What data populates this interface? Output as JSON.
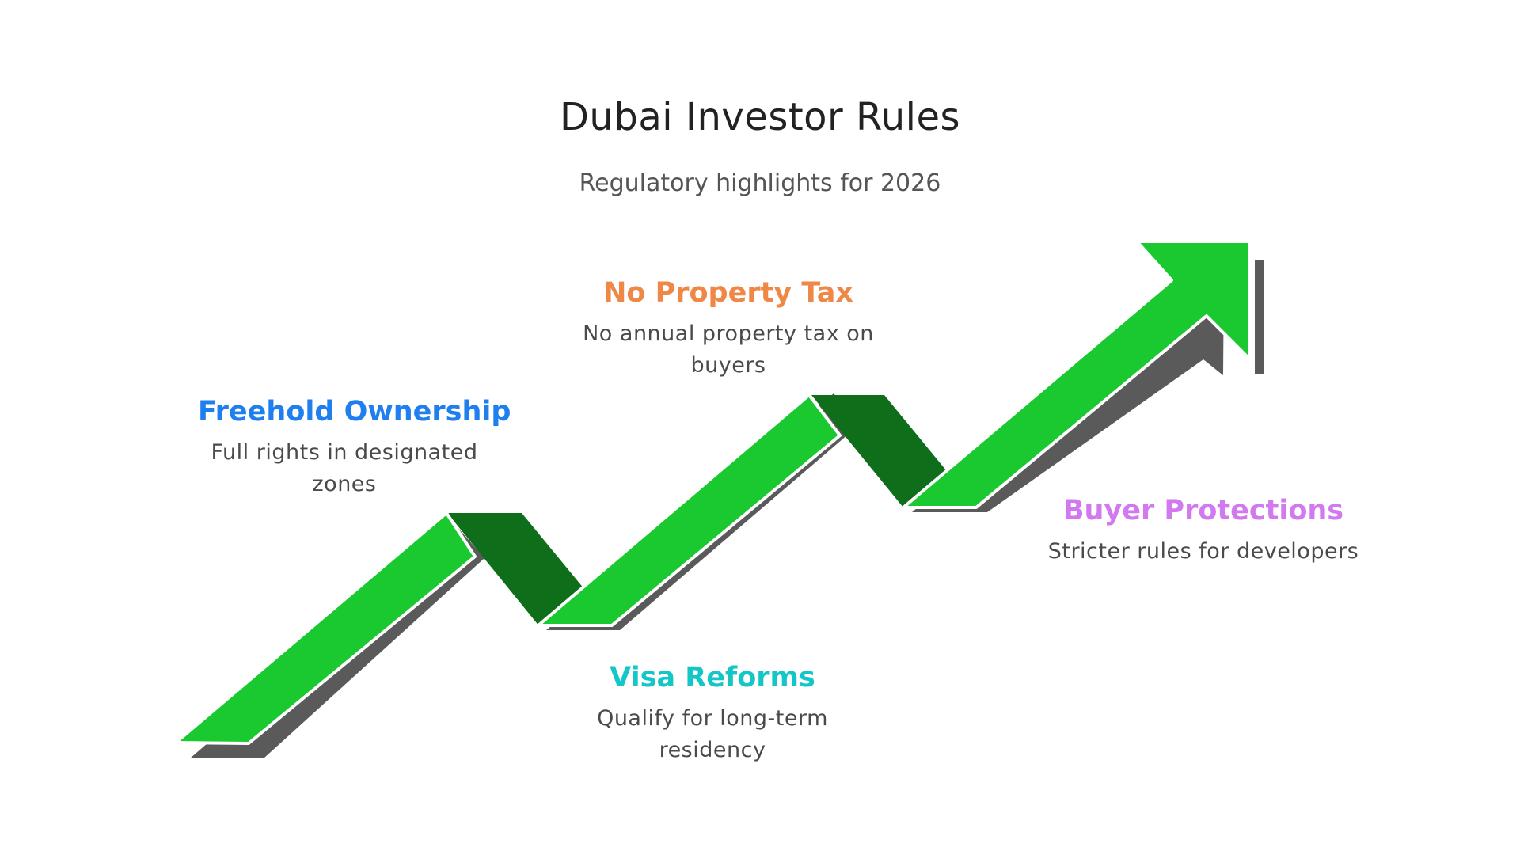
{
  "title": "Dubai Investor Rules",
  "subtitle": "Regulatory highlights for 2026",
  "colors": {
    "arrow_face": "#1ac92f",
    "arrow_fold": "#0e6e1a",
    "arrow_shadow": "#5a5a5a",
    "step_1": "#1f7fef",
    "step_2": "#ef8746",
    "step_3": "#14c6c6",
    "step_4": "#d279f0"
  },
  "steps": [
    {
      "title": "Freehold Ownership",
      "description": "Full rights in designated zones"
    },
    {
      "title": "No Property Tax",
      "description": "No annual property tax on buyers"
    },
    {
      "title": "Visa Reforms",
      "description": "Qualify for long-term residency"
    },
    {
      "title": "Buyer Protections",
      "description": "Stricter rules for developers"
    }
  ]
}
